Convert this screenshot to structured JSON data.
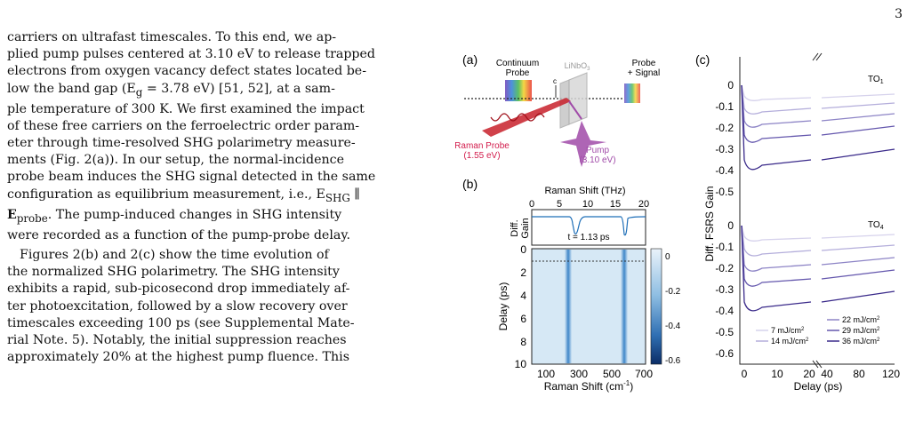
{
  "page_number": "3",
  "text": {
    "p1_l1": "carriers on ultrafast timescales. To this end, we ap-",
    "p1_l2": "plied pump pulses centered at 3.10 eV to release trapped",
    "p1_l3": "electrons from oxygen vacancy defect states located be-",
    "p1_l4": "low the band gap (E",
    "p1_l4_sub": "g",
    "p1_l4_rest": " = 3.78 eV) [51, 52], at a sam-",
    "p1_l5": "ple temperature of 300 K. We first examined the impact",
    "p1_l6": "of these free carriers on the ferroelectric order param-",
    "p1_l7": "eter through time-resolved SHG polarimetry measure-",
    "p1_l8": "ments (Fig. 2(a)). In our setup, the normal-incidence",
    "p1_l9": "probe beam induces the SHG signal detected in the same",
    "p1_l10": "configuration as equilibrium measurement, i.e., E",
    "p1_l10_sub": "SHG",
    "p1_l10_rest": " ∥",
    "p1_l11": "E",
    "p1_l11_sub": "probe",
    "p1_l11_rest": ". The pump-induced changes in SHG intensity",
    "p1_l12": "were recorded as a function of the pump-probe delay.",
    "p2_l1": "Figures 2(b) and 2(c) show the time evolution of",
    "p2_l2": "the normalized SHG polarimetry. The SHG intensity",
    "p2_l3": "exhibits a rapid, sub-picosecond drop immediately af-",
    "p2_l4": "ter photoexcitation, followed by a slow recovery over",
    "p2_l5": "timescales exceeding 100 ps (see Supplemental Mate-",
    "p2_l6": "rial Note. 5). Notably, the initial suppression reaches",
    "p2_l7": "approximately 20% at the highest pump fluence. This"
  },
  "figure": {
    "panel_a": {
      "label": "(a)",
      "continuum_probe_1": "Continuum",
      "continuum_probe_2": "Probe",
      "crystal": "LiNbO",
      "crystal_sub": "3",
      "probe_signal_1": "Probe",
      "probe_signal_2": "+ Signal",
      "c_axis": "c",
      "raman_probe_1": "Raman Probe",
      "raman_probe_2": "(1.55 eV)",
      "pump_1": "Pump",
      "pump_2": "(3.10 eV)"
    },
    "panel_b": {
      "label": "(b)",
      "top_xlabel": "Raman Shift (THz)",
      "top_xticks": [
        "0",
        "5",
        "10",
        "15",
        "20"
      ],
      "top_ylabel_1": "Diff.",
      "top_ylabel_2": "Gain",
      "time_label": "t = 1.13 ps",
      "ylabel": "Delay (ps)",
      "yticks": [
        "0",
        "2",
        "4",
        "6",
        "8",
        "10"
      ],
      "xlabel": "Raman Shift (cm",
      "xlabel_sup": "-1",
      "xlabel_end": ")",
      "xticks": [
        "100",
        "300",
        "500",
        "700"
      ],
      "colorbar_ticks": [
        "0",
        "-0.2",
        "-0.4",
        "-0.6"
      ]
    },
    "panel_c": {
      "label": "(c)",
      "ylabel": "Diff. FSRS Gain",
      "yticks_top": [
        "0",
        "-0.1",
        "-0.2",
        "-0.3",
        "-0.4",
        "-0.5"
      ],
      "yticks_bottom": [
        "0",
        "-0.1",
        "-0.2",
        "-0.3",
        "-0.4",
        "-0.5",
        "-0.6"
      ],
      "mode_top": "TO",
      "mode_top_sub": "1",
      "mode_bottom": "TO",
      "mode_bottom_sub": "4",
      "xticks": [
        "0",
        "10",
        "20",
        "40",
        "80",
        "120"
      ],
      "xlabel": "Delay (ps)",
      "legend": [
        {
          "label": "7 mJ/cm",
          "sup": "2",
          "color": "#d6d2ec"
        },
        {
          "label": "14 mJ/cm",
          "sup": "2",
          "color": "#b4aedb"
        },
        {
          "label": "22 mJ/cm",
          "sup": "2",
          "color": "#8d84c6"
        },
        {
          "label": "29 mJ/cm",
          "sup": "2",
          "color": "#6457ad"
        },
        {
          "label": "36 mJ/cm",
          "sup": "2",
          "color": "#3a2a8a"
        }
      ]
    }
  }
}
